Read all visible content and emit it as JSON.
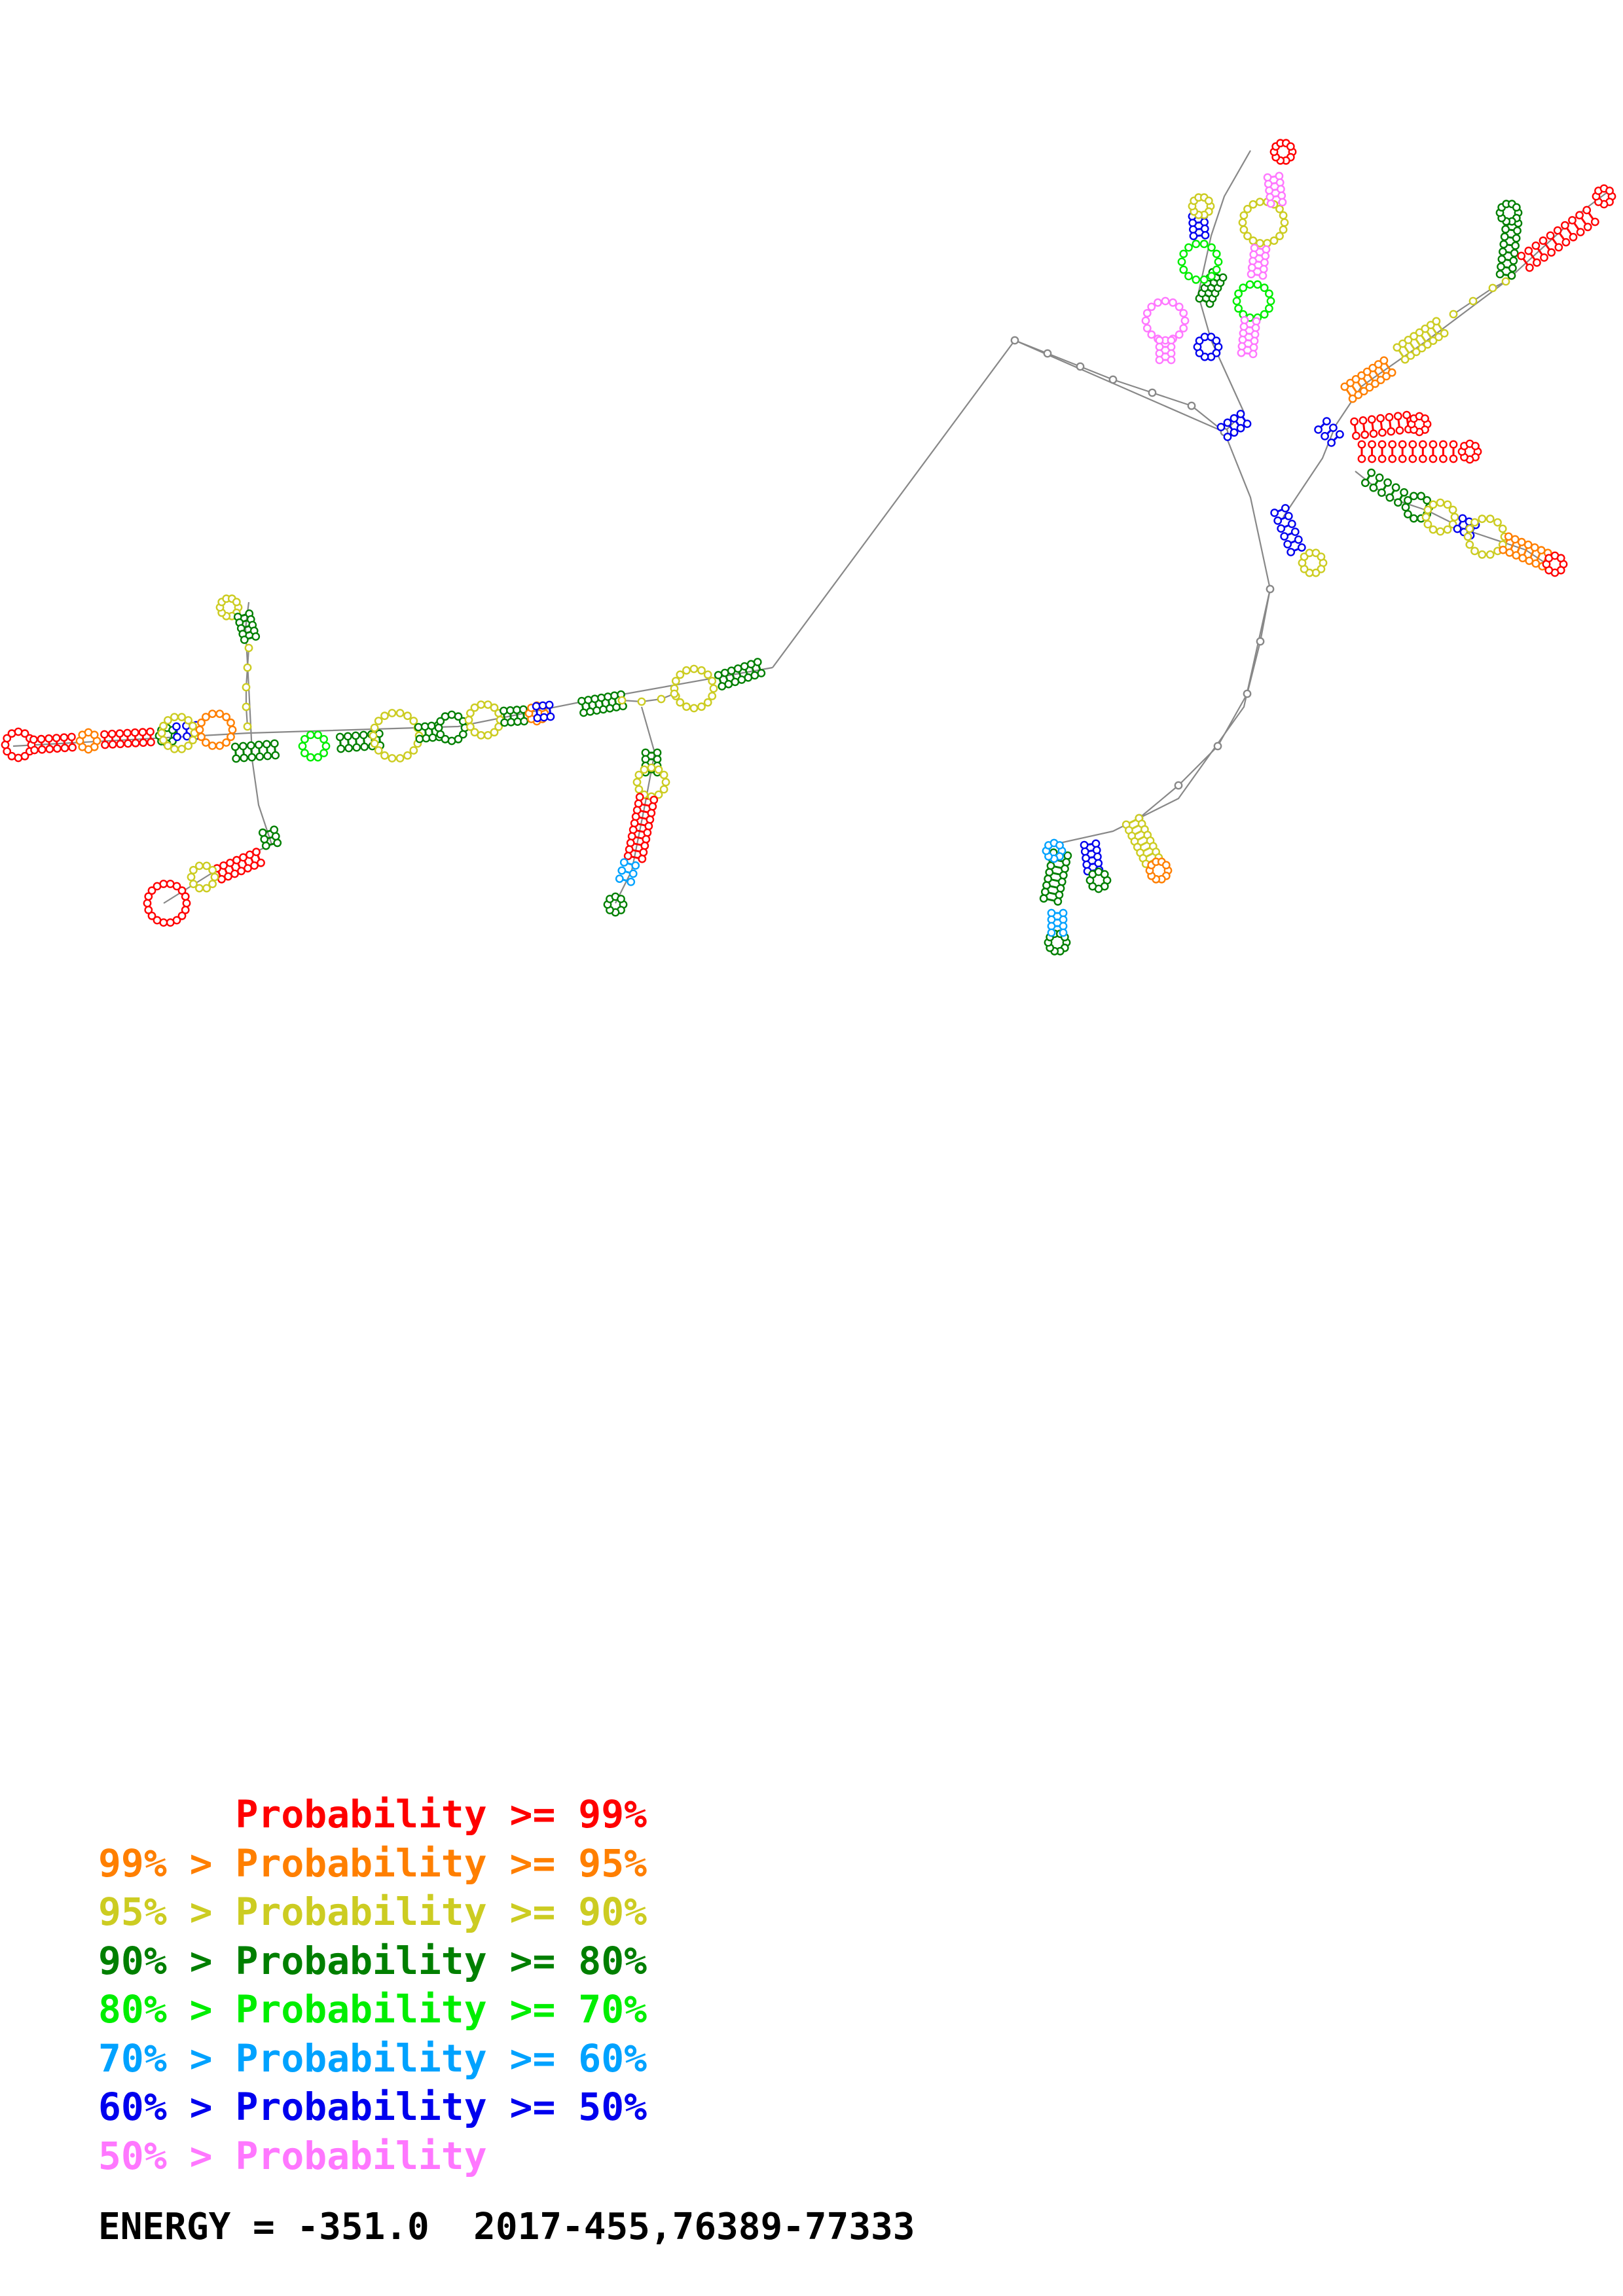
{
  "legend": {
    "probability_word": "Probability",
    "rows": [
      {
        "left": "",
        "right": ">= 99%",
        "color": "#ff0000"
      },
      {
        "left": "99% >",
        "right": ">= 95%",
        "color": "#ff7f00"
      },
      {
        "left": "95% >",
        "right": ">= 90%",
        "color": "#cccc22"
      },
      {
        "left": "90% >",
        "right": ">= 80%",
        "color": "#007f00"
      },
      {
        "left": "80% >",
        "right": ">= 70%",
        "color": "#00ee00"
      },
      {
        "left": "70% >",
        "right": ">= 60%",
        "color": "#00a2ff"
      },
      {
        "left": "60% >",
        "right": ">= 50%",
        "color": "#0000ee"
      },
      {
        "left": "50% >",
        "right": "",
        "color": "#ff77ff"
      }
    ]
  },
  "energy": {
    "label": "ENERGY = -351.0",
    "region": "2017-455,76389-77333"
  },
  "colors": {
    "backbone": "#888888",
    "label": "#000000"
  }
}
